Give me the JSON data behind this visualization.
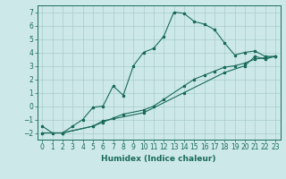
{
  "title": "",
  "xlabel": "Humidex (Indice chaleur)",
  "ylabel": "",
  "bg_color": "#cce8e8",
  "grid_color": "#aacccc",
  "line_color": "#1a6b5a",
  "x_min": -0.5,
  "x_max": 23.5,
  "y_min": -2.5,
  "y_max": 7.5,
  "yticks": [
    -2,
    -1,
    0,
    1,
    2,
    3,
    4,
    5,
    6,
    7
  ],
  "xticks": [
    0,
    1,
    2,
    3,
    4,
    5,
    6,
    7,
    8,
    9,
    10,
    11,
    12,
    13,
    14,
    15,
    16,
    17,
    18,
    19,
    20,
    21,
    22,
    23
  ],
  "line1_x": [
    0,
    1,
    2,
    3,
    4,
    5,
    6,
    7,
    8,
    9,
    10,
    11,
    12,
    13,
    14,
    15,
    16,
    17,
    18,
    19,
    20,
    21,
    22,
    23
  ],
  "line1_y": [
    -1.5,
    -2.0,
    -2.0,
    -1.5,
    -1.0,
    -0.1,
    0.0,
    1.5,
    0.8,
    3.0,
    4.0,
    4.3,
    5.2,
    7.0,
    6.9,
    6.3,
    6.1,
    5.7,
    4.7,
    3.8,
    4.0,
    4.1,
    3.7,
    3.7
  ],
  "line2_x": [
    0,
    2,
    5,
    6,
    7,
    8,
    10,
    11,
    12,
    14,
    15,
    16,
    17,
    18,
    19,
    20,
    21,
    22,
    23
  ],
  "line2_y": [
    -2.0,
    -2.0,
    -1.5,
    -1.2,
    -0.9,
    -0.6,
    -0.3,
    0.0,
    0.5,
    1.5,
    2.0,
    2.3,
    2.6,
    2.9,
    3.0,
    3.2,
    3.5,
    3.6,
    3.7
  ],
  "line3_x": [
    0,
    2,
    5,
    6,
    10,
    14,
    18,
    20,
    21,
    22,
    23
  ],
  "line3_y": [
    -2.0,
    -2.0,
    -1.5,
    -1.1,
    -0.5,
    1.0,
    2.5,
    3.0,
    3.7,
    3.5,
    3.7
  ],
  "tick_fontsize": 5.5,
  "xlabel_fontsize": 6.5
}
